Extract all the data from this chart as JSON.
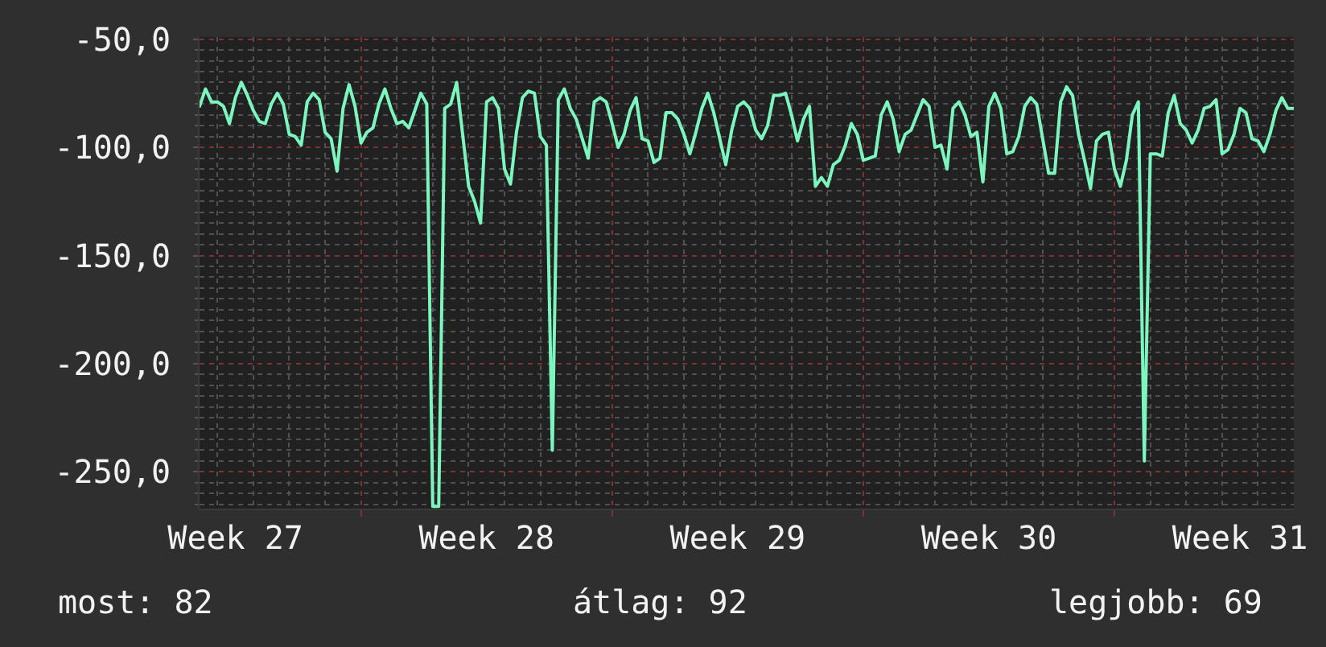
{
  "chart_data": {
    "type": "line",
    "color": "#7cf5bf",
    "grid": true,
    "categories": [
      null,
      null,
      null,
      null,
      null,
      null,
      "Week 27",
      null,
      null,
      null,
      null,
      null,
      null,
      null,
      null,
      null,
      null,
      null,
      null,
      null,
      null,
      null,
      null,
      null,
      null,
      null,
      null,
      null,
      null,
      null,
      null,
      null,
      null,
      null,
      null,
      null,
      null,
      null,
      null,
      null,
      null,
      null,
      null,
      null,
      null,
      null,
      null,
      null,
      "Week 28",
      null,
      null,
      null,
      null,
      null,
      null,
      null,
      null,
      null,
      null,
      null,
      null,
      null,
      null,
      null,
      null,
      null,
      null,
      null,
      null,
      null,
      null,
      null,
      null,
      null,
      null,
      null,
      null,
      null,
      null,
      null,
      null,
      null,
      null,
      null,
      null,
      null,
      null,
      null,
      null,
      null,
      "Week 29",
      null,
      null,
      null,
      null,
      null,
      null,
      null,
      null,
      null,
      null,
      null,
      null,
      null,
      null,
      null,
      null,
      null,
      null,
      null,
      null,
      null,
      null,
      null,
      null,
      null,
      null,
      null,
      null,
      null,
      null,
      null,
      null,
      null,
      null,
      null,
      null,
      null,
      null,
      null,
      null,
      null,
      "Week 30",
      null,
      null,
      null,
      null,
      null,
      null,
      null,
      null,
      null,
      null,
      null,
      null,
      null,
      null,
      null,
      null,
      null,
      null,
      null,
      null,
      null,
      null,
      null,
      null,
      null,
      null,
      null,
      null,
      null,
      null,
      null,
      null,
      null,
      null,
      null,
      null,
      null,
      null,
      null,
      null,
      null,
      "Week 31",
      null,
      null,
      null,
      null,
      null,
      null,
      null,
      null,
      null
    ],
    "ylim": [
      -267,
      -49
    ],
    "yticks": [
      {
        "value": -250,
        "label": "-250,0"
      },
      {
        "value": -200,
        "label": "-200,0"
      },
      {
        "value": -150,
        "label": "-150,0"
      },
      {
        "value": -100,
        "label": "-100,0"
      },
      {
        "value": -50,
        "label": "-50,0"
      }
    ],
    "annotations": [
      "most: 82",
      "átlag: 92",
      "legjobb: 69"
    ],
    "values": [
      -81,
      -73,
      -79,
      -79,
      -81,
      -89,
      -77,
      -70,
      -76,
      -83,
      -88,
      -89,
      -80,
      -75,
      -80,
      -94,
      -95,
      -99,
      -79,
      -75,
      -78,
      -93,
      -96,
      -111,
      -82,
      -71,
      -81,
      -98,
      -93,
      -91,
      -80,
      -73,
      -82,
      -89,
      -88,
      -91,
      -83,
      -75,
      -80,
      -266,
      -266,
      -82,
      -80,
      -70,
      -94,
      -118,
      -125,
      -135,
      -79,
      -77,
      -82,
      -110,
      -117,
      -93,
      -77,
      -74,
      -75,
      -95,
      -99,
      -240,
      -78,
      -73,
      -82,
      -87,
      -96,
      -105,
      -79,
      -77,
      -79,
      -89,
      -100,
      -94,
      -83,
      -77,
      -96,
      -97,
      -107,
      -105,
      -84,
      -84,
      -87,
      -94,
      -103,
      -93,
      -82,
      -75,
      -84,
      -96,
      -108,
      -92,
      -81,
      -79,
      -82,
      -92,
      -96,
      -90,
      -76,
      -76,
      -75,
      -85,
      -97,
      -87,
      -81,
      -118,
      -114,
      -118,
      -108,
      -106,
      -99,
      -89,
      -94,
      -106,
      -105,
      -104,
      -85,
      -79,
      -87,
      -102,
      -94,
      -92,
      -85,
      -78,
      -81,
      -100,
      -99,
      -110,
      -82,
      -79,
      -85,
      -95,
      -93,
      -116,
      -81,
      -75,
      -82,
      -103,
      -102,
      -95,
      -81,
      -77,
      -80,
      -96,
      -112,
      -112,
      -79,
      -72,
      -76,
      -94,
      -106,
      -119,
      -97,
      -94,
      -93,
      -110,
      -118,
      -106,
      -85,
      -79,
      -245,
      -103,
      -103,
      -104,
      -84,
      -76,
      -89,
      -92,
      -98,
      -92,
      -82,
      -81,
      -78,
      -103,
      -101,
      -94,
      -82,
      -84,
      -96,
      -97,
      -102,
      -94,
      -83,
      -77,
      -82,
      -82
    ]
  }
}
